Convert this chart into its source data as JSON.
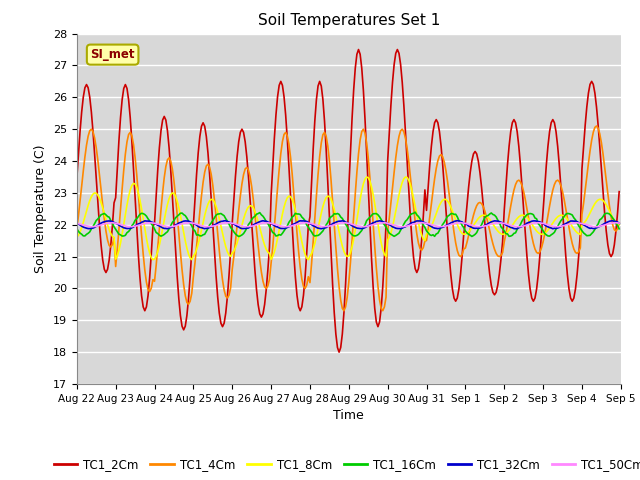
{
  "title": "Soil Temperatures Set 1",
  "xlabel": "Time",
  "ylabel": "Soil Temperature (C)",
  "ylim": [
    17.0,
    28.0
  ],
  "yticks": [
    17.0,
    18.0,
    19.0,
    20.0,
    21.0,
    22.0,
    23.0,
    24.0,
    25.0,
    26.0,
    27.0,
    28.0
  ],
  "xtick_labels": [
    "Aug 22",
    "Aug 23",
    "Aug 24",
    "Aug 25",
    "Aug 26",
    "Aug 27",
    "Aug 28",
    "Aug 29",
    "Aug 30",
    "Aug 31",
    "Sep 1",
    "Sep 2",
    "Sep 3",
    "Sep 4",
    "Sep 5"
  ],
  "annotation_text": "SI_met",
  "series_colors": [
    "#cc0000",
    "#ff8800",
    "#ffff00",
    "#00cc00",
    "#0000cc",
    "#ff88ff"
  ],
  "series_labels": [
    "TC1_2Cm",
    "TC1_4Cm",
    "TC1_8Cm",
    "TC1_16Cm",
    "TC1_32Cm",
    "TC1_50Cm"
  ],
  "bg_color": "#ffffff",
  "plot_bg_color": "#d8d8d8",
  "grid_color": "#ffffff",
  "days": 14,
  "pts_per_day": 24,
  "base_temp": 22.0,
  "linewidth": 1.2,
  "daily_peak_2cm": [
    26.4,
    26.4,
    25.4,
    25.2,
    25.0,
    26.5,
    26.5,
    27.5,
    27.5,
    25.3,
    24.3,
    25.3,
    25.3,
    26.5
  ],
  "daily_min_2cm": [
    20.5,
    19.3,
    18.7,
    18.8,
    19.1,
    19.3,
    18.0,
    18.8,
    20.5,
    19.6,
    19.8,
    19.6,
    19.6,
    21.0
  ],
  "daily_peak_4cm": [
    25.0,
    24.9,
    24.1,
    23.9,
    23.8,
    24.9,
    24.9,
    25.0,
    25.0,
    24.2,
    22.7,
    23.4,
    23.4,
    25.1
  ],
  "daily_min_4cm": [
    21.3,
    19.9,
    19.5,
    19.7,
    20.0,
    20.0,
    19.3,
    19.3,
    21.2,
    21.0,
    21.0,
    21.1,
    21.1,
    21.8
  ],
  "daily_peak_8cm": [
    23.0,
    23.3,
    23.0,
    22.8,
    22.6,
    22.9,
    22.9,
    23.5,
    23.5,
    22.8,
    22.3,
    22.3,
    22.3,
    22.8
  ],
  "daily_min_8cm": [
    21.6,
    20.9,
    20.9,
    21.0,
    21.1,
    20.9,
    21.0,
    21.0,
    21.5,
    21.7,
    21.7,
    21.7,
    21.7,
    22.0
  ],
  "amp_16cm": 0.35,
  "amp_32cm": 0.12,
  "amp_50cm": 0.06,
  "phase_16cm": 1.2,
  "phase_32cm": 2.0,
  "phase_50cm": 2.5,
  "peak_phase_2cm": 0.5,
  "peak_phase_4cm": 0.62,
  "peak_phase_8cm": 0.72
}
